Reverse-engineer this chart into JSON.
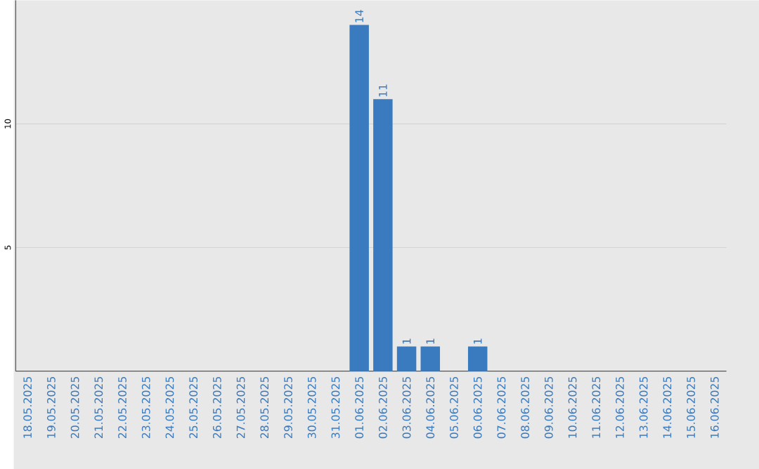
{
  "chart_data": {
    "type": "bar",
    "categories": [
      "18.05.2025",
      "19.05.2025",
      "20.05.2025",
      "21.05.2025",
      "22.05.2025",
      "23.05.2025",
      "24.05.2025",
      "25.05.2025",
      "26.05.2025",
      "27.05.2025",
      "28.05.2025",
      "29.05.2025",
      "30.05.2025",
      "31.05.2025",
      "01.06.2025",
      "02.06.2025",
      "03.06.2025",
      "04.06.2025",
      "05.06.2025",
      "06.06.2025",
      "07.06.2025",
      "08.06.2025",
      "09.06.2025",
      "10.06.2025",
      "11.06.2025",
      "12.06.2025",
      "13.06.2025",
      "14.06.2025",
      "15.06.2025",
      "16.06.2025"
    ],
    "values": [
      0,
      0,
      0,
      0,
      0,
      0,
      0,
      0,
      0,
      0,
      0,
      0,
      0,
      0,
      14,
      11,
      1,
      1,
      0,
      1,
      0,
      0,
      0,
      0,
      0,
      0,
      0,
      0,
      0,
      0
    ],
    "value_labels": [
      null,
      null,
      null,
      null,
      null,
      null,
      null,
      null,
      null,
      null,
      null,
      null,
      null,
      null,
      "14",
      "11",
      "1",
      "1",
      null,
      "1",
      null,
      null,
      null,
      null,
      null,
      null,
      null,
      null,
      null,
      null
    ],
    "color": "#3a7bbf",
    "ylim": [
      0,
      15
    ],
    "yticks": [
      5,
      10
    ],
    "grid": "y"
  }
}
